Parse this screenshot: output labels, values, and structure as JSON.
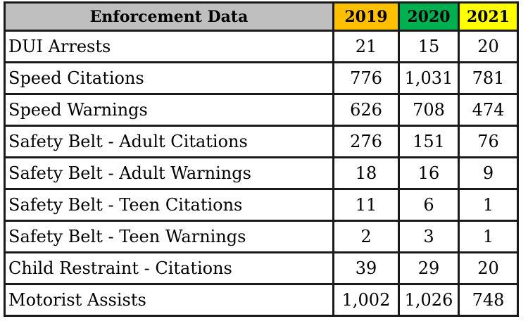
{
  "table": {
    "header": {
      "label": "Enforcement Data",
      "years": [
        {
          "label": "2019",
          "color": "#ffc000"
        },
        {
          "label": "2020",
          "color": "#00b050"
        },
        {
          "label": "2021",
          "color": "#ffff00"
        }
      ]
    },
    "rows": [
      {
        "label": "DUI Arrests",
        "values": [
          "21",
          "15",
          "20"
        ]
      },
      {
        "label": "Speed Citations",
        "values": [
          "776",
          "1,031",
          "781"
        ]
      },
      {
        "label": "Speed Warnings",
        "values": [
          "626",
          "708",
          "474"
        ]
      },
      {
        "label": "Safety Belt - Adult Citations",
        "values": [
          "276",
          "151",
          "76"
        ]
      },
      {
        "label": "Safety Belt - Adult Warnings",
        "values": [
          "18",
          "16",
          "9"
        ]
      },
      {
        "label": "Safety Belt - Teen Citations",
        "values": [
          "11",
          "6",
          "1"
        ]
      },
      {
        "label": "Safety Belt - Teen Warnings",
        "values": [
          "2",
          "3",
          "1"
        ]
      },
      {
        "label": "Child Restraint - Citations",
        "values": [
          "39",
          "29",
          "20"
        ]
      },
      {
        "label": "Motorist Assists",
        "values": [
          "1,002",
          "1,026",
          "748"
        ]
      }
    ]
  }
}
